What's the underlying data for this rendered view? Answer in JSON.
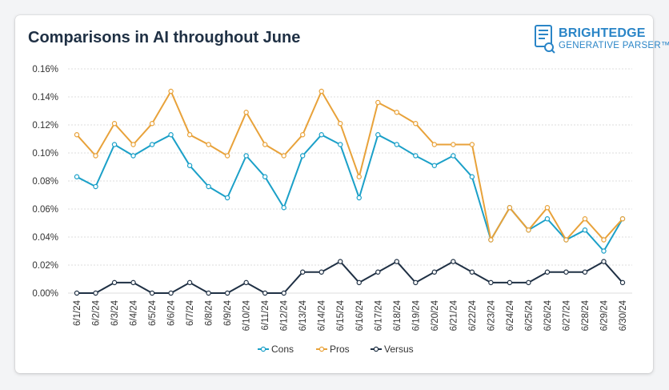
{
  "header": {
    "title": "Comparisons in AI throughout June",
    "logo_line1": "BRIGHTEDGE",
    "logo_line2": "GENERATIVE PARSER™"
  },
  "colors": {
    "Cons": "#1ba0c8",
    "Pros": "#e8a23a",
    "Versus": "#1f3044",
    "grid": "#dcdcdc",
    "brand": "#2a85c7"
  },
  "chart_data": {
    "type": "line",
    "title": "Comparisons in AI throughout June",
    "xlabel": "",
    "ylabel": "",
    "ylim": [
      0,
      0.16
    ],
    "y_ticks": [
      0,
      0.02,
      0.04,
      0.06,
      0.08,
      0.1,
      0.12,
      0.14,
      0.16
    ],
    "y_tick_labels": [
      "0.00%",
      "0.02%",
      "0.04%",
      "0.06%",
      "0.08%",
      "0.10%",
      "0.12%",
      "0.14%",
      "0.16%"
    ],
    "grid": true,
    "legend": "bottom-center",
    "categories": [
      "6/1/24",
      "6/2/24",
      "6/3/24",
      "6/4/24",
      "6/5/24",
      "6/6/24",
      "6/7/24",
      "6/8/24",
      "6/9/24",
      "6/10/24",
      "6/11/24",
      "6/12/24",
      "6/13/24",
      "6/14/24",
      "6/15/24",
      "6/16/24",
      "6/17/24",
      "6/18/24",
      "6/19/24",
      "6/20/24",
      "6/21/24",
      "6/22/24",
      "6/23/24",
      "6/24/24",
      "6/25/24",
      "6/26/24",
      "6/27/24",
      "6/28/24",
      "6/29/24",
      "6/30/24"
    ],
    "series": [
      {
        "name": "Cons",
        "values": [
          0.083,
          0.076,
          0.106,
          0.098,
          0.106,
          0.113,
          0.091,
          0.076,
          0.068,
          0.098,
          0.083,
          0.061,
          0.098,
          0.113,
          0.106,
          0.068,
          0.113,
          0.106,
          0.098,
          0.091,
          0.098,
          0.083,
          0.038,
          0.061,
          0.045,
          0.053,
          0.038,
          0.045,
          0.03,
          0.053
        ]
      },
      {
        "name": "Pros",
        "values": [
          0.113,
          0.098,
          0.121,
          0.106,
          0.121,
          0.144,
          0.113,
          0.106,
          0.098,
          0.129,
          0.106,
          0.098,
          0.113,
          0.144,
          0.121,
          0.083,
          0.136,
          0.129,
          0.121,
          0.106,
          0.106,
          0.106,
          0.038,
          0.061,
          0.045,
          0.061,
          0.038,
          0.053,
          0.038,
          0.053
        ]
      },
      {
        "name": "Versus",
        "values": [
          0.0,
          0.0,
          0.0075,
          0.0075,
          0.0,
          0.0,
          0.0075,
          0.0,
          0.0,
          0.0075,
          0.0,
          0.0,
          0.015,
          0.015,
          0.0225,
          0.0075,
          0.015,
          0.0225,
          0.0075,
          0.015,
          0.0225,
          0.015,
          0.0075,
          0.0075,
          0.0075,
          0.015,
          0.015,
          0.015,
          0.0225,
          0.0075
        ]
      }
    ]
  }
}
